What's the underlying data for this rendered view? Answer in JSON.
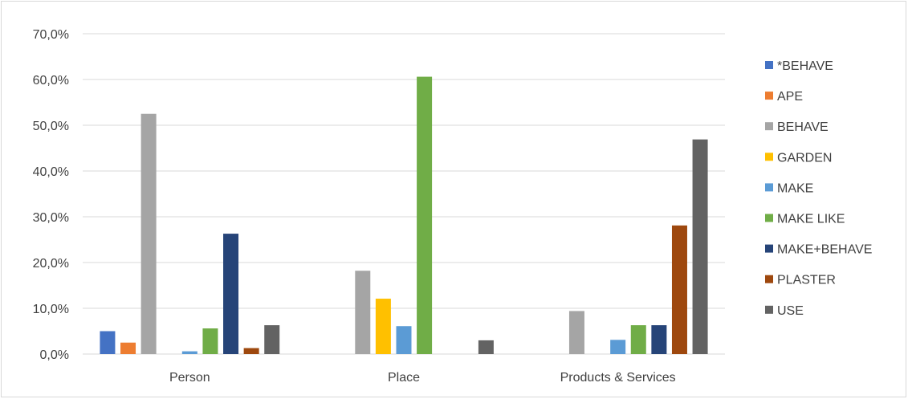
{
  "chart_data": {
    "type": "bar",
    "title": "",
    "xlabel": "",
    "ylabel": "",
    "ylim": [
      0,
      70
    ],
    "y_ticks": [
      "0,0%",
      "10,0%",
      "20,0%",
      "30,0%",
      "40,0%",
      "50,0%",
      "60,0%",
      "70,0%"
    ],
    "grid": true,
    "legend_position": "right",
    "categories": [
      "Person",
      "Place",
      "Products & Services"
    ],
    "series": [
      {
        "name": "*BEHAVE",
        "color": "#4472C4",
        "values": [
          5.0,
          0,
          0
        ]
      },
      {
        "name": "APE",
        "color": "#ED7D31",
        "values": [
          2.5,
          0,
          0
        ]
      },
      {
        "name": "BEHAVE",
        "color": "#A5A5A5",
        "values": [
          52.5,
          18.2,
          9.4
        ]
      },
      {
        "name": "GARDEN",
        "color": "#FFC000",
        "values": [
          0,
          12.1,
          0
        ]
      },
      {
        "name": "MAKE",
        "color": "#5B9BD5",
        "values": [
          0.6,
          6.1,
          3.1
        ]
      },
      {
        "name": "MAKE LIKE",
        "color": "#70AD47",
        "values": [
          5.6,
          60.6,
          6.3
        ]
      },
      {
        "name": "MAKE+BEHAVE",
        "color": "#264478",
        "values": [
          26.3,
          0,
          6.3
        ]
      },
      {
        "name": "PLASTER",
        "color": "#9E480E",
        "values": [
          1.3,
          0,
          28.1
        ]
      },
      {
        "name": "USE",
        "color": "#636363",
        "values": [
          6.3,
          3.0,
          46.9
        ]
      }
    ]
  }
}
